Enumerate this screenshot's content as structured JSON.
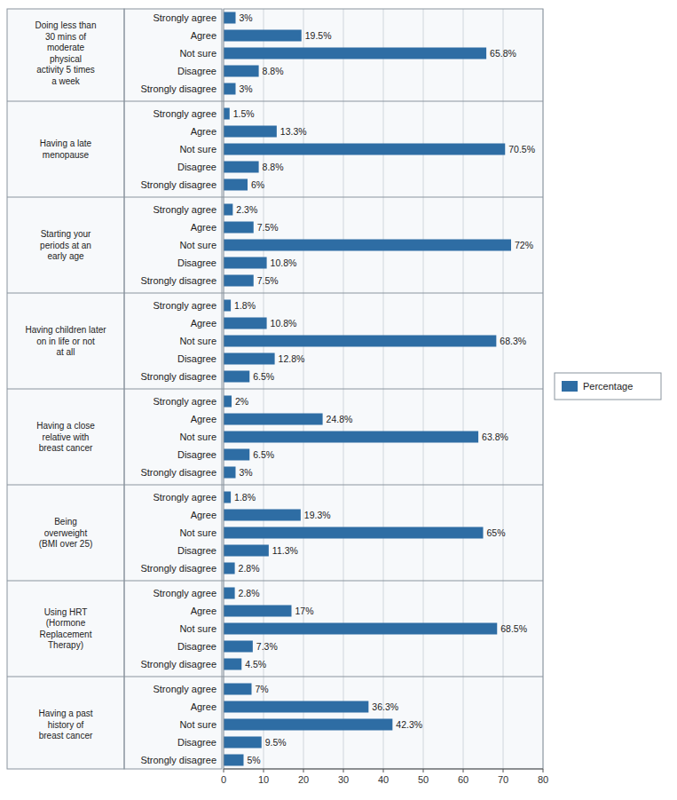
{
  "chart_data": {
    "type": "bar",
    "orientation": "horizontal",
    "groups": [
      {
        "label": "Doing less than\n30 mins of\nmoderate\nphysical\nactivity 5 times\na week",
        "categories": [
          "Strongly agree",
          "Agree",
          "Not sure",
          "Disagree",
          "Strongly disagree"
        ]
      },
      {
        "label": "Having a late\nmenopause",
        "categories": [
          "Strongly agree",
          "Agree",
          "Not sure",
          "Disagree",
          "Strongly disagree"
        ]
      },
      {
        "label": "Starting your\nperiods at an\nearly age",
        "categories": [
          "Strongly agree",
          "Agree",
          "Not sure",
          "Disagree",
          "Strongly disagree"
        ]
      },
      {
        "label": "Having children later\non in life or not\nat all",
        "categories": [
          "Strongly agree",
          "Agree",
          "Not sure",
          "Disagree",
          "Strongly disagree"
        ]
      },
      {
        "label": "Having a close\nrelative with\nbreast cancer",
        "categories": [
          "Strongly agree",
          "Agree",
          "Not sure",
          "Disagree",
          "Strongly disagree"
        ]
      },
      {
        "label": "Being\noverweight\n(BMI over 25)",
        "categories": [
          "Strongly agree",
          "Agree",
          "Not sure",
          "Disagree",
          "Strongly disagree"
        ]
      },
      {
        "label": "Using HRT\n(Hormone\nReplacement\nTherapy)",
        "categories": [
          "Strongly agree",
          "Agree",
          "Not sure",
          "Disagree",
          "Strongly disagree"
        ]
      },
      {
        "label": "Having a past\nhistory of\nbreast cancer",
        "categories": [
          "Strongly agree",
          "Agree",
          "Not sure",
          "Disagree",
          "Strongly disagree"
        ]
      }
    ],
    "series": [
      {
        "name": "Percentage",
        "color": "#2E6DA4",
        "values": [
          3,
          19.5,
          65.8,
          8.8,
          3,
          1.5,
          13.3,
          70.5,
          8.8,
          6,
          2.3,
          7.5,
          72,
          10.8,
          7.5,
          1.8,
          10.8,
          68.3,
          12.8,
          6.5,
          2,
          24.8,
          63.8,
          6.5,
          3,
          1.8,
          19.3,
          65,
          11.3,
          2.8,
          2.8,
          17,
          68.5,
          7.3,
          4.5,
          7,
          36.3,
          42.3,
          9.5,
          5
        ],
        "value_labels": [
          "3%",
          "19.5%",
          "65.8%",
          "8.8%",
          "3%",
          "1.5%",
          "13.3%",
          "70.5%",
          "8.8%",
          "6%",
          "2.3%",
          "7.5%",
          "72%",
          "10.8%",
          "7.5%",
          "1.8%",
          "10.8%",
          "68.3%",
          "12.8%",
          "6.5%",
          "2%",
          "24.8%",
          "63.8%",
          "6.5%",
          "3%",
          "1.8%",
          "19.3%",
          "65%",
          "11.3%",
          "2.8%",
          "2.8%",
          "17%",
          "68.5%",
          "7.3%",
          "4.5%",
          "7%",
          "36.3%",
          "42.3%",
          "9.5%",
          "5%"
        ]
      }
    ],
    "xlim": [
      0,
      80
    ],
    "xticks": [
      0,
      10,
      20,
      30,
      40,
      50,
      60,
      70,
      80
    ],
    "grid": true,
    "legend": "right",
    "data_labels": true
  }
}
